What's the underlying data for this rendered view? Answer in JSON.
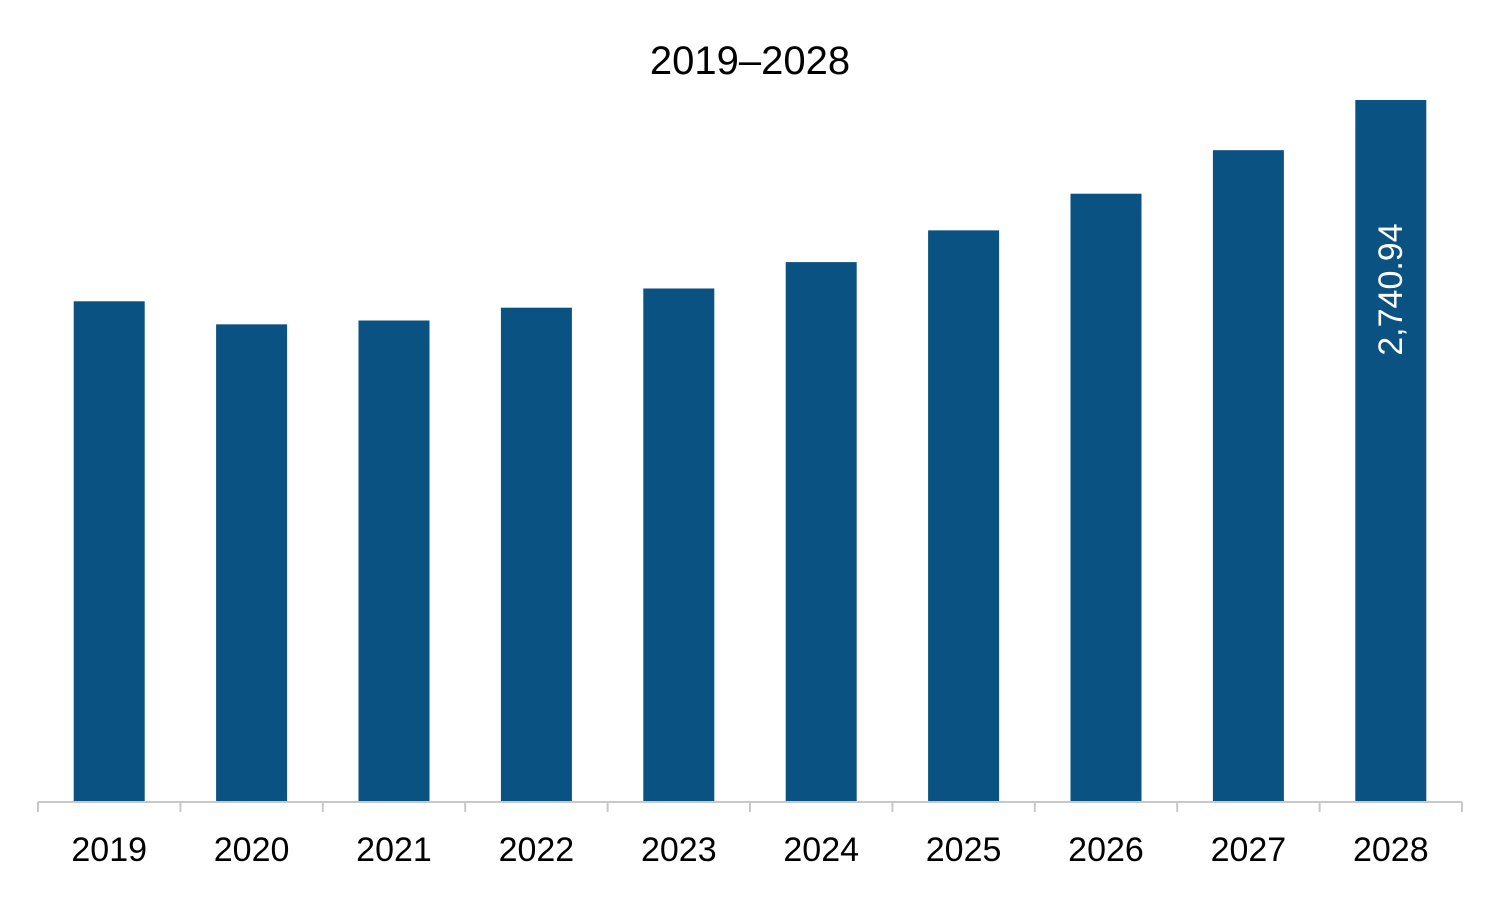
{
  "chart_data": {
    "type": "bar",
    "title": "2019–2028",
    "xlabel": "",
    "ylabel": "",
    "categories": [
      "2019",
      "2020",
      "2021",
      "2022",
      "2023",
      "2024",
      "2025",
      "2026",
      "2027",
      "2028"
    ],
    "values": [
      1955,
      1865,
      1880,
      1930,
      2005,
      2108,
      2232,
      2375,
      2545,
      2740.94
    ],
    "data_labels": [
      {
        "category": "2028",
        "text": "2,740.94"
      }
    ],
    "ylim": [
      0,
      2740.94
    ],
    "grid": false,
    "legend": "none",
    "bar_color": "#0a5282"
  }
}
